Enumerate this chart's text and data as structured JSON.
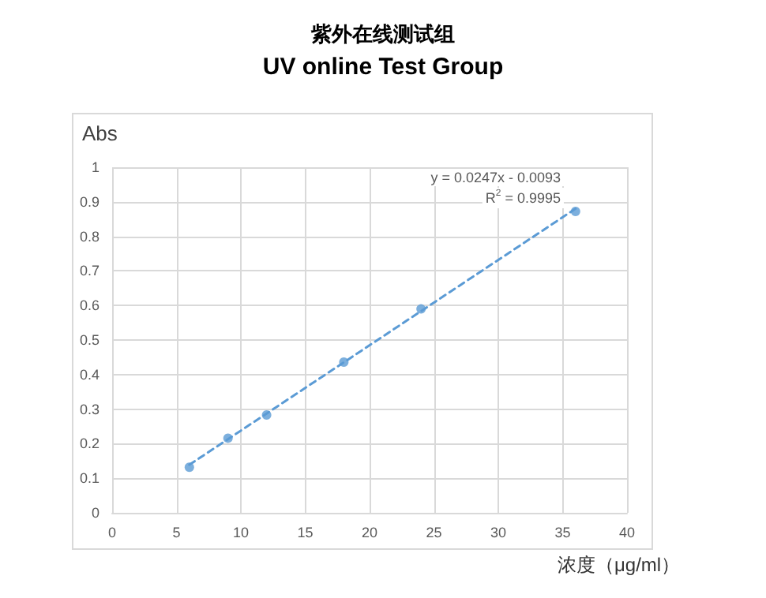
{
  "chart_data": {
    "type": "scatter",
    "title": "紫外在线测试组",
    "subtitle": "UV online Test Group",
    "xlabel": "浓度（μg/ml）",
    "ylabel": "Abs",
    "annotations": [
      "y = 0.0247x - 0.0093",
      "R$^{2}$ = 0.9995"
    ],
    "series": [
      {
        "type": "scatter",
        "color": "#5b9bd5",
        "marker": "circle",
        "x": [
          6,
          9,
          12,
          18,
          24,
          36
        ],
        "values": [
          0.132,
          0.216,
          0.283,
          0.436,
          0.59,
          0.872
        ]
      },
      {
        "type": "line",
        "color": "#5b9bd5",
        "marker": "none",
        "line_style": "dashed",
        "x": [
          6,
          36
        ],
        "values": [
          0.139,
          0.88
        ]
      }
    ],
    "xlim": [
      0,
      40
    ],
    "xticks": [
      0,
      5,
      10,
      15,
      20,
      25,
      30,
      35,
      40
    ],
    "ylim": [
      0,
      1
    ],
    "yticks": [
      0,
      0.1,
      0.2,
      0.3,
      0.4,
      0.5,
      0.6,
      0.7,
      0.8,
      0.9,
      1
    ],
    "grid": true
  }
}
